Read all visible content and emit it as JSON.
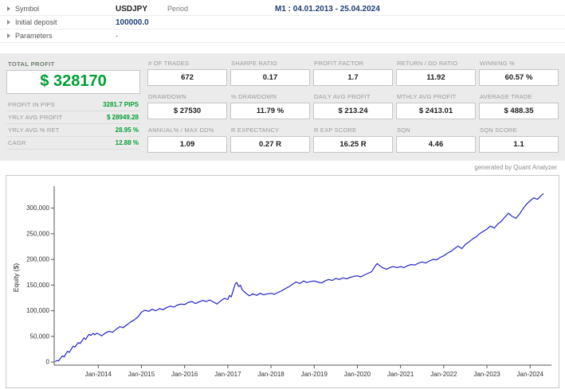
{
  "header": {
    "symbol_label": "Symbol",
    "symbol_value": "USDJPY",
    "period_label": "Period",
    "period_value": "M1 : 04.01.2013 - 25.04.2024",
    "initial_deposit_label": "Initial deposit",
    "initial_deposit_value": "100000.0",
    "parameters_label": "Parameters",
    "parameters_value": "-"
  },
  "profit_panel": {
    "title": "TOTAL PROFIT",
    "total_profit": "$ 328170",
    "rows": [
      {
        "label": "PROFIT IN PIPS",
        "value": "3281.7 PIPS"
      },
      {
        "label": "YRLY AVG PROFIT",
        "value": "$ 28949.28"
      },
      {
        "label": "YRLY AVG % RET",
        "value": "28.95 %"
      },
      {
        "label": "CAGR",
        "value": "12.88 %"
      }
    ]
  },
  "stats": [
    [
      {
        "label": "# OF TRADES",
        "value": "672"
      },
      {
        "label": "SHARPE RATIO",
        "value": "0.17"
      },
      {
        "label": "PROFIT FACTOR",
        "value": "1.7"
      },
      {
        "label": "RETURN / DD RATIO",
        "value": "11.92"
      },
      {
        "label": "WINNING %",
        "value": "60.57 %"
      }
    ],
    [
      {
        "label": "DRAWDOWN",
        "value": "$ 27530"
      },
      {
        "label": "% DRAWDOWN",
        "value": "11.79 %"
      },
      {
        "label": "DAILY AVG PROFIT",
        "value": "$ 213.24"
      },
      {
        "label": "MTHLY AVG PROFIT",
        "value": "$ 2413.01"
      },
      {
        "label": "AVERAGE TRADE",
        "value": "$ 488.35"
      }
    ],
    [
      {
        "label": "ANNUAL% / MAX DD%",
        "value": "1.09"
      },
      {
        "label": "R EXPECTANCY",
        "value": "0.27 R"
      },
      {
        "label": "R EXP SCORE",
        "value": "16.25 R"
      },
      {
        "label": "SQN",
        "value": "4.46"
      },
      {
        "label": "SQN SCORE",
        "value": "1.1"
      }
    ]
  ],
  "footer_note": "generated by Quant Analyzer",
  "chart_data": {
    "type": "line",
    "title": "",
    "xlabel": "",
    "ylabel": "Equity ($)",
    "line_color": "#2222cc",
    "grid": false,
    "legend": false,
    "xlim": [
      2012.98,
      2024.42
    ],
    "ylim": [
      -6000,
      335000
    ],
    "y_ticks": [
      0,
      50000,
      100000,
      150000,
      200000,
      250000,
      300000
    ],
    "x_ticks": [
      {
        "x": 2014,
        "label": "Jan-2014"
      },
      {
        "x": 2015,
        "label": "Jan-2015"
      },
      {
        "x": 2016,
        "label": "Jan-2016"
      },
      {
        "x": 2017,
        "label": "Jan-2017"
      },
      {
        "x": 2018,
        "label": "Jan-2018"
      },
      {
        "x": 2019,
        "label": "Jan-2019"
      },
      {
        "x": 2020,
        "label": "Jan-2020"
      },
      {
        "x": 2021,
        "label": "Jan-2021"
      },
      {
        "x": 2022,
        "label": "Jan-2022"
      },
      {
        "x": 2023,
        "label": "Jan-2023"
      },
      {
        "x": 2024,
        "label": "Jan-2024"
      }
    ],
    "series": [
      {
        "name": "Equity",
        "points": [
          [
            2013.0,
            500
          ],
          [
            2013.04,
            3000
          ],
          [
            2013.08,
            2000
          ],
          [
            2013.12,
            7000
          ],
          [
            2013.17,
            12000
          ],
          [
            2013.21,
            10000
          ],
          [
            2013.25,
            16000
          ],
          [
            2013.29,
            21000
          ],
          [
            2013.33,
            19000
          ],
          [
            2013.38,
            26000
          ],
          [
            2013.42,
            31000
          ],
          [
            2013.46,
            29000
          ],
          [
            2013.5,
            34000
          ],
          [
            2013.54,
            38000
          ],
          [
            2013.58,
            36000
          ],
          [
            2013.63,
            42000
          ],
          [
            2013.67,
            47000
          ],
          [
            2013.71,
            44000
          ],
          [
            2013.75,
            50000
          ],
          [
            2013.79,
            54000
          ],
          [
            2013.83,
            52000
          ],
          [
            2013.88,
            56000
          ],
          [
            2013.92,
            53000
          ],
          [
            2013.96,
            56000
          ],
          [
            2014.0,
            55000
          ],
          [
            2014.08,
            51000
          ],
          [
            2014.17,
            57000
          ],
          [
            2014.25,
            60000
          ],
          [
            2014.33,
            58000
          ],
          [
            2014.42,
            64000
          ],
          [
            2014.5,
            69000
          ],
          [
            2014.58,
            67000
          ],
          [
            2014.67,
            73000
          ],
          [
            2014.75,
            78000
          ],
          [
            2014.83,
            82000
          ],
          [
            2014.92,
            88000
          ],
          [
            2015.0,
            97000
          ],
          [
            2015.08,
            101000
          ],
          [
            2015.17,
            99000
          ],
          [
            2015.25,
            103000
          ],
          [
            2015.33,
            100000
          ],
          [
            2015.42,
            104000
          ],
          [
            2015.5,
            102000
          ],
          [
            2015.58,
            106000
          ],
          [
            2015.67,
            109000
          ],
          [
            2015.75,
            107000
          ],
          [
            2015.83,
            111000
          ],
          [
            2015.92,
            113000
          ],
          [
            2016.0,
            112000
          ],
          [
            2016.08,
            116000
          ],
          [
            2016.17,
            118000
          ],
          [
            2016.25,
            114000
          ],
          [
            2016.33,
            117000
          ],
          [
            2016.42,
            120000
          ],
          [
            2016.5,
            118000
          ],
          [
            2016.58,
            121000
          ],
          [
            2016.67,
            117000
          ],
          [
            2016.75,
            113000
          ],
          [
            2016.83,
            119000
          ],
          [
            2016.92,
            124000
          ],
          [
            2017.0,
            122000
          ],
          [
            2017.04,
            130000
          ],
          [
            2017.08,
            127000
          ],
          [
            2017.13,
            141000
          ],
          [
            2017.17,
            152000
          ],
          [
            2017.21,
            155000
          ],
          [
            2017.25,
            147000
          ],
          [
            2017.29,
            150000
          ],
          [
            2017.33,
            141000
          ],
          [
            2017.42,
            134000
          ],
          [
            2017.5,
            129000
          ],
          [
            2017.58,
            133000
          ],
          [
            2017.67,
            130000
          ],
          [
            2017.75,
            134000
          ],
          [
            2017.83,
            131000
          ],
          [
            2017.92,
            133000
          ],
          [
            2018.0,
            134000
          ],
          [
            2018.08,
            132000
          ],
          [
            2018.17,
            136000
          ],
          [
            2018.25,
            139000
          ],
          [
            2018.33,
            143000
          ],
          [
            2018.42,
            147000
          ],
          [
            2018.5,
            152000
          ],
          [
            2018.58,
            156000
          ],
          [
            2018.67,
            153000
          ],
          [
            2018.75,
            158000
          ],
          [
            2018.83,
            155000
          ],
          [
            2018.92,
            157000
          ],
          [
            2019.0,
            158000
          ],
          [
            2019.08,
            156000
          ],
          [
            2019.17,
            154000
          ],
          [
            2019.25,
            158000
          ],
          [
            2019.33,
            161000
          ],
          [
            2019.42,
            159000
          ],
          [
            2019.5,
            163000
          ],
          [
            2019.58,
            161000
          ],
          [
            2019.67,
            164000
          ],
          [
            2019.75,
            162000
          ],
          [
            2019.83,
            165000
          ],
          [
            2019.92,
            167000
          ],
          [
            2020.0,
            168000
          ],
          [
            2020.08,
            166000
          ],
          [
            2020.17,
            170000
          ],
          [
            2020.25,
            173000
          ],
          [
            2020.33,
            176000
          ],
          [
            2020.42,
            188000
          ],
          [
            2020.46,
            192000
          ],
          [
            2020.5,
            189000
          ],
          [
            2020.58,
            184000
          ],
          [
            2020.67,
            181000
          ],
          [
            2020.75,
            184000
          ],
          [
            2020.83,
            186000
          ],
          [
            2020.92,
            184000
          ],
          [
            2021.0,
            186000
          ],
          [
            2021.08,
            184000
          ],
          [
            2021.17,
            188000
          ],
          [
            2021.25,
            190000
          ],
          [
            2021.33,
            189000
          ],
          [
            2021.42,
            193000
          ],
          [
            2021.5,
            195000
          ],
          [
            2021.58,
            193000
          ],
          [
            2021.67,
            197000
          ],
          [
            2021.75,
            200000
          ],
          [
            2021.83,
            199000
          ],
          [
            2021.92,
            204000
          ],
          [
            2022.0,
            207000
          ],
          [
            2022.08,
            212000
          ],
          [
            2022.17,
            216000
          ],
          [
            2022.25,
            221000
          ],
          [
            2022.33,
            226000
          ],
          [
            2022.42,
            221000
          ],
          [
            2022.5,
            229000
          ],
          [
            2022.58,
            234000
          ],
          [
            2022.67,
            240000
          ],
          [
            2022.75,
            244000
          ],
          [
            2022.83,
            250000
          ],
          [
            2022.92,
            255000
          ],
          [
            2023.0,
            259000
          ],
          [
            2023.08,
            265000
          ],
          [
            2023.17,
            261000
          ],
          [
            2023.25,
            269000
          ],
          [
            2023.33,
            274000
          ],
          [
            2023.42,
            283000
          ],
          [
            2023.5,
            290000
          ],
          [
            2023.58,
            284000
          ],
          [
            2023.67,
            280000
          ],
          [
            2023.75,
            288000
          ],
          [
            2023.83,
            298000
          ],
          [
            2023.92,
            308000
          ],
          [
            2024.0,
            314000
          ],
          [
            2024.08,
            320000
          ],
          [
            2024.17,
            317000
          ],
          [
            2024.25,
            324000
          ],
          [
            2024.31,
            328170
          ]
        ]
      }
    ]
  }
}
